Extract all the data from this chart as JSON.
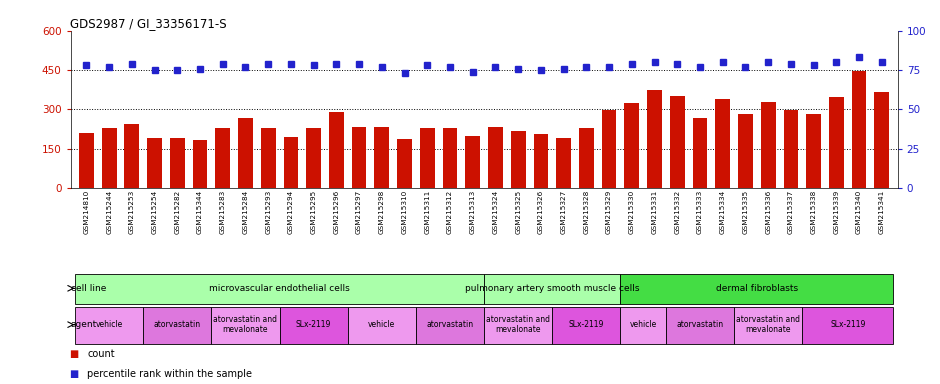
{
  "title": "GDS2987 / GI_33356171-S",
  "samples": [
    "GSM214810",
    "GSM215244",
    "GSM215253",
    "GSM215254",
    "GSM215282",
    "GSM215344",
    "GSM215283",
    "GSM215284",
    "GSM215293",
    "GSM215294",
    "GSM215295",
    "GSM215296",
    "GSM215297",
    "GSM215298",
    "GSM215310",
    "GSM215311",
    "GSM215312",
    "GSM215313",
    "GSM215324",
    "GSM215325",
    "GSM215326",
    "GSM215327",
    "GSM215328",
    "GSM215329",
    "GSM215330",
    "GSM215331",
    "GSM215332",
    "GSM215333",
    "GSM215334",
    "GSM215335",
    "GSM215336",
    "GSM215337",
    "GSM215338",
    "GSM215339",
    "GSM215340",
    "GSM215341"
  ],
  "counts": [
    210,
    228,
    243,
    193,
    193,
    182,
    228,
    268,
    228,
    195,
    228,
    292,
    232,
    232,
    188,
    228,
    228,
    198,
    232,
    218,
    208,
    193,
    228,
    297,
    325,
    375,
    350,
    268,
    338,
    282,
    327,
    297,
    282,
    347,
    448,
    368
  ],
  "percentiles": [
    78,
    77,
    79,
    75,
    75,
    76,
    79,
    77,
    79,
    79,
    78,
    79,
    79,
    77,
    73,
    78,
    77,
    74,
    77,
    76,
    75,
    76,
    77,
    77,
    79,
    80,
    79,
    77,
    80,
    77,
    80,
    79,
    78,
    80,
    83,
    80
  ],
  "cell_blocks": [
    {
      "label": "microvascular endothelial cells",
      "start": 0,
      "end": 17,
      "color": "#AAFFAA"
    },
    {
      "label": "pulmonary artery smooth muscle cells",
      "start": 18,
      "end": 23,
      "color": "#AAFFAA"
    },
    {
      "label": "dermal fibroblasts",
      "start": 24,
      "end": 35,
      "color": "#44DD44"
    }
  ],
  "agent_groups": [
    {
      "label": "vehicle",
      "start": 0,
      "end": 2,
      "color": "#EE99EE"
    },
    {
      "label": "atorvastatin",
      "start": 3,
      "end": 5,
      "color": "#DD77DD"
    },
    {
      "label": "atorvastatin and\nmevalonate",
      "start": 6,
      "end": 8,
      "color": "#EE99EE"
    },
    {
      "label": "SLx-2119",
      "start": 9,
      "end": 11,
      "color": "#DD55DD"
    },
    {
      "label": "vehicle",
      "start": 12,
      "end": 14,
      "color": "#EE99EE"
    },
    {
      "label": "atorvastatin",
      "start": 15,
      "end": 17,
      "color": "#DD77DD"
    },
    {
      "label": "atorvastatin and\nmevalonate",
      "start": 18,
      "end": 20,
      "color": "#EE99EE"
    },
    {
      "label": "SLx-2119",
      "start": 21,
      "end": 23,
      "color": "#DD55DD"
    },
    {
      "label": "vehicle",
      "start": 24,
      "end": 25,
      "color": "#EE99EE"
    },
    {
      "label": "atorvastatin",
      "start": 26,
      "end": 28,
      "color": "#DD77DD"
    },
    {
      "label": "atorvastatin and\nmevalonate",
      "start": 29,
      "end": 31,
      "color": "#EE99EE"
    },
    {
      "label": "SLx-2119",
      "start": 32,
      "end": 35,
      "color": "#DD55DD"
    }
  ],
  "bar_color": "#CC1100",
  "dot_color": "#2222CC",
  "ylim_left": [
    0,
    600
  ],
  "ylim_right": [
    0,
    100
  ],
  "yticks_left": [
    0,
    150,
    300,
    450,
    600
  ],
  "yticks_right": [
    0,
    25,
    50,
    75,
    100
  ],
  "hlines": [
    150,
    300,
    450
  ],
  "bg_chart": "#ffffff",
  "bg_fig": "#ffffff",
  "xtick_bg": "#DDDDDD"
}
